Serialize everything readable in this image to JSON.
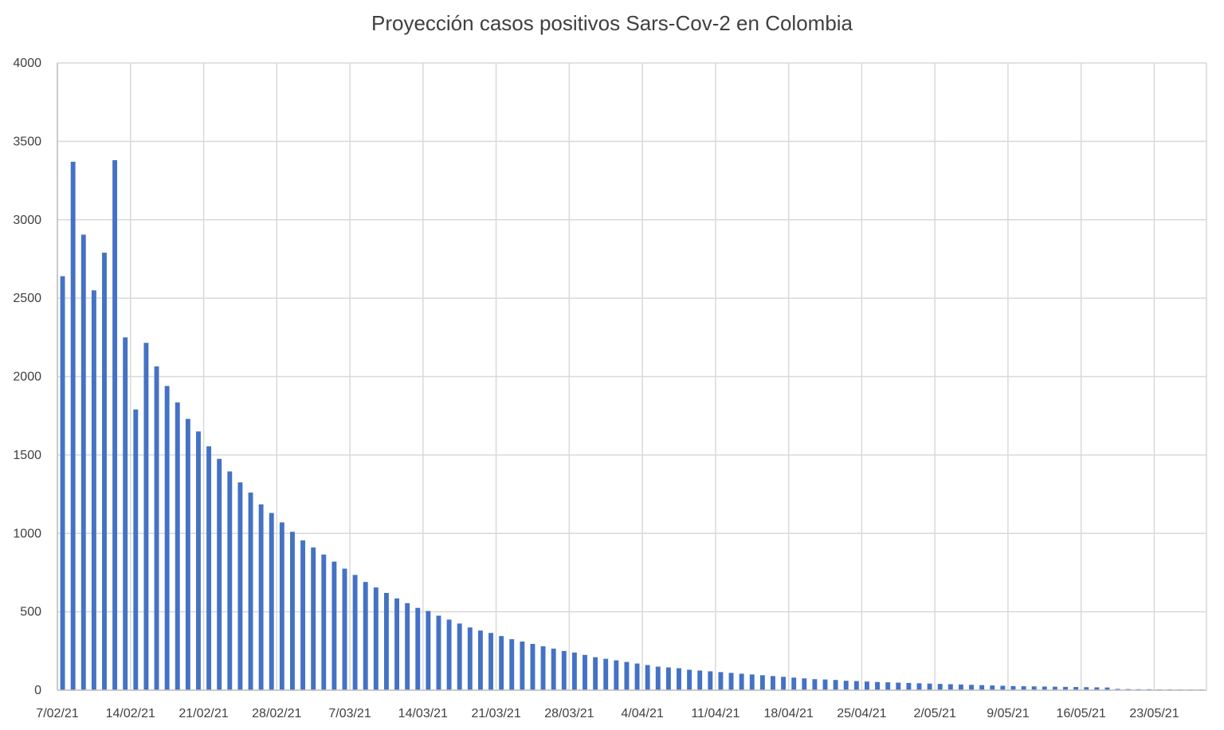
{
  "chart_data": {
    "type": "bar",
    "title": "Proyección casos positivos Sars-Cov-2 en Colombia",
    "xlabel": "",
    "ylabel": "",
    "ylim": [
      0,
      4000
    ],
    "yticks": [
      0,
      500,
      1000,
      1500,
      2000,
      2500,
      3000,
      3500,
      4000
    ],
    "x_tick_labels": [
      "7/02/21",
      "14/02/21",
      "21/02/21",
      "28/02/21",
      "7/03/21",
      "14/03/21",
      "21/03/21",
      "28/03/21",
      "4/04/21",
      "11/04/21",
      "18/04/21",
      "25/04/21",
      "2/05/21",
      "9/05/21",
      "16/05/21",
      "23/05/21"
    ],
    "x_start": "7/02/21",
    "x_end": "27/05/21",
    "grid": true,
    "legend": "none",
    "bar_color": "#4472C4",
    "x": [
      "7/02/21",
      "8/02/21",
      "9/02/21",
      "10/02/21",
      "11/02/21",
      "12/02/21",
      "13/02/21",
      "14/02/21",
      "15/02/21",
      "16/02/21",
      "17/02/21",
      "18/02/21",
      "19/02/21",
      "20/02/21",
      "21/02/21",
      "22/02/21",
      "23/02/21",
      "24/02/21",
      "25/02/21",
      "26/02/21",
      "27/02/21",
      "28/02/21",
      "1/03/21",
      "2/03/21",
      "3/03/21",
      "4/03/21",
      "5/03/21",
      "6/03/21",
      "7/03/21",
      "8/03/21",
      "9/03/21",
      "10/03/21",
      "11/03/21",
      "12/03/21",
      "13/03/21",
      "14/03/21",
      "15/03/21",
      "16/03/21",
      "17/03/21",
      "18/03/21",
      "19/03/21",
      "20/03/21",
      "21/03/21",
      "22/03/21",
      "23/03/21",
      "24/03/21",
      "25/03/21",
      "26/03/21",
      "27/03/21",
      "28/03/21",
      "29/03/21",
      "30/03/21",
      "31/03/21",
      "1/04/21",
      "2/04/21",
      "3/04/21",
      "4/04/21",
      "5/04/21",
      "6/04/21",
      "7/04/21",
      "8/04/21",
      "9/04/21",
      "10/04/21",
      "11/04/21",
      "12/04/21",
      "13/04/21",
      "14/04/21",
      "15/04/21",
      "16/04/21",
      "17/04/21",
      "18/04/21",
      "19/04/21",
      "20/04/21",
      "21/04/21",
      "22/04/21",
      "23/04/21",
      "24/04/21",
      "25/04/21",
      "26/04/21",
      "27/04/21",
      "28/04/21",
      "29/04/21",
      "30/04/21",
      "1/05/21",
      "2/05/21",
      "3/05/21",
      "4/05/21",
      "5/05/21",
      "6/05/21",
      "7/05/21",
      "8/05/21",
      "9/05/21",
      "10/05/21",
      "11/05/21",
      "12/05/21",
      "13/05/21",
      "14/05/21",
      "15/05/21",
      "16/05/21",
      "17/05/21",
      "18/05/21",
      "19/05/21",
      "20/05/21",
      "21/05/21",
      "22/05/21",
      "23/05/21",
      "24/05/21",
      "25/05/21",
      "26/05/21",
      "27/05/21"
    ],
    "values": [
      2640,
      3370,
      2905,
      2550,
      2790,
      3380,
      2250,
      1790,
      2215,
      2065,
      1940,
      1835,
      1730,
      1650,
      1555,
      1475,
      1395,
      1325,
      1260,
      1185,
      1130,
      1070,
      1010,
      955,
      910,
      865,
      820,
      775,
      735,
      690,
      655,
      620,
      585,
      555,
      525,
      505,
      475,
      450,
      425,
      400,
      380,
      365,
      345,
      325,
      310,
      295,
      280,
      265,
      250,
      240,
      225,
      210,
      200,
      190,
      180,
      170,
      160,
      150,
      145,
      140,
      130,
      125,
      120,
      115,
      110,
      105,
      100,
      95,
      90,
      85,
      80,
      75,
      70,
      68,
      65,
      60,
      58,
      55,
      52,
      50,
      48,
      46,
      44,
      42,
      40,
      38,
      36,
      34,
      32,
      30,
      28,
      26,
      25,
      24,
      23,
      22,
      21,
      20,
      19,
      18,
      17,
      8,
      7,
      6,
      6,
      5,
      5,
      4,
      4,
      4
    ]
  }
}
